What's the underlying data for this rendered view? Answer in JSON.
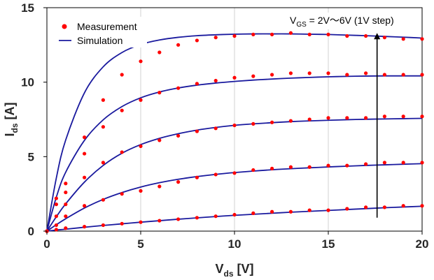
{
  "chart_data": {
    "type": "line",
    "xlabel": {
      "main": "V",
      "sub": "ds",
      "rest": " [V]"
    },
    "ylabel": {
      "main": "I",
      "sub": "ds",
      "rest": " [A]"
    },
    "xlim": [
      0,
      20
    ],
    "ylim": [
      0,
      15
    ],
    "xticks": [
      0,
      5,
      10,
      15,
      20
    ],
    "yticks": [
      0,
      5,
      10,
      15
    ],
    "grid": "vertical",
    "legend": {
      "position": "top-left",
      "entries": [
        {
          "name": "Measurement",
          "style": "marker",
          "color": "#ff0000"
        },
        {
          "name": "Simulation",
          "style": "line",
          "color": "#1a1a9e"
        }
      ]
    },
    "annotation": {
      "parts": [
        {
          "text": "V",
          "kind": "main"
        },
        {
          "text": "GS",
          "kind": "sub"
        },
        {
          "text": " = 2V～6V (1V step)",
          "kind": "main"
        }
      ],
      "arrow_from": [
        17.6,
        0.9
      ],
      "arrow_to": [
        17.6,
        13.3
      ]
    },
    "measurement_x": [
      0,
      0.5,
      1,
      2,
      3,
      4,
      5,
      6,
      7,
      8,
      9,
      10,
      11,
      12,
      13,
      14,
      15,
      16,
      17,
      18,
      19,
      20
    ],
    "series": [
      {
        "vgs": "6V",
        "simulation": [
          0.0,
          3.55,
          6.11,
          9.28,
          11.03,
          11.99,
          12.53,
          12.83,
          13.01,
          13.12,
          13.18,
          13.22,
          13.24,
          13.24,
          13.24,
          13.22,
          13.2,
          13.16,
          13.12,
          13.07,
          13.02,
          12.96
        ],
        "measurement": [
          0.0,
          2.2,
          3.2,
          6.3,
          8.8,
          10.5,
          11.4,
          12.0,
          12.5,
          12.8,
          13.0,
          13.1,
          13.2,
          13.2,
          13.3,
          13.2,
          13.2,
          13.1,
          13.1,
          13.0,
          12.9,
          12.9
        ]
      },
      {
        "vgs": "5V",
        "simulation": [
          0.0,
          2.27,
          3.95,
          6.09,
          7.47,
          8.36,
          8.95,
          9.34,
          9.61,
          9.8,
          9.94,
          10.05,
          10.14,
          10.21,
          10.27,
          10.32,
          10.36,
          10.39,
          10.41,
          10.42,
          10.42,
          10.42
        ],
        "measurement": [
          0.0,
          1.8,
          2.6,
          5.2,
          7.0,
          8.1,
          8.8,
          9.3,
          9.6,
          9.9,
          10.1,
          10.3,
          10.4,
          10.5,
          10.6,
          10.6,
          10.6,
          10.5,
          10.6,
          10.5,
          10.5,
          10.5
        ]
      },
      {
        "vgs": "4V",
        "simulation": [
          0.0,
          0.96,
          1.83,
          3.29,
          4.41,
          5.23,
          5.81,
          6.23,
          6.54,
          6.78,
          6.96,
          7.1,
          7.2,
          7.28,
          7.35,
          7.4,
          7.44,
          7.48,
          7.51,
          7.53,
          7.55,
          7.57
        ],
        "measurement": [
          0.0,
          1.0,
          1.8,
          3.6,
          4.6,
          5.3,
          5.7,
          6.1,
          6.4,
          6.7,
          6.9,
          7.1,
          7.2,
          7.3,
          7.4,
          7.5,
          7.6,
          7.6,
          7.6,
          7.7,
          7.7,
          7.7
        ]
      },
      {
        "vgs": "3V",
        "simulation": [
          0.0,
          0.43,
          0.83,
          1.55,
          2.13,
          2.59,
          2.96,
          3.25,
          3.48,
          3.66,
          3.81,
          3.93,
          4.03,
          4.12,
          4.19,
          4.25,
          4.31,
          4.36,
          4.41,
          4.45,
          4.49,
          4.53
        ],
        "measurement": [
          0.0,
          0.4,
          1.0,
          1.7,
          2.1,
          2.5,
          2.7,
          3.0,
          3.3,
          3.6,
          3.8,
          3.9,
          4.1,
          4.2,
          4.3,
          4.3,
          4.4,
          4.4,
          4.5,
          4.6,
          4.6,
          4.6
        ]
      },
      {
        "vgs": "2V",
        "simulation": [
          0.0,
          0.07,
          0.13,
          0.26,
          0.38,
          0.49,
          0.6,
          0.7,
          0.8,
          0.89,
          0.98,
          1.06,
          1.13,
          1.2,
          1.27,
          1.33,
          1.39,
          1.45,
          1.51,
          1.57,
          1.62,
          1.67
        ],
        "measurement": [
          0.0,
          0.1,
          0.2,
          0.3,
          0.4,
          0.5,
          0.6,
          0.7,
          0.8,
          0.9,
          1.0,
          1.1,
          1.2,
          1.3,
          1.3,
          1.4,
          1.4,
          1.5,
          1.6,
          1.6,
          1.7,
          1.7
        ]
      }
    ]
  }
}
